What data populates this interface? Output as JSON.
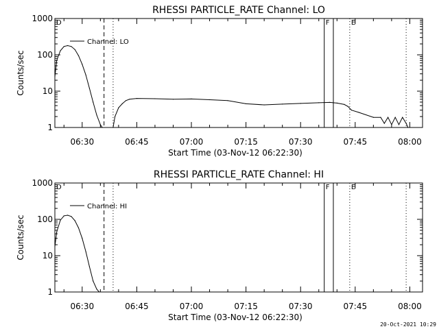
{
  "footer_date": "20-Oct-2021 10:29",
  "chart_data": [
    {
      "type": "line",
      "title": "RHESSI PARTICLE_RATE Channel: LO",
      "xlabel": "Start Time (03-Nov-12 06:22:30)",
      "ylabel": "Counts/sec",
      "yscale": "log",
      "ylim": [
        1,
        1000
      ],
      "xlim": [
        "06:22:30",
        "08:03:30"
      ],
      "x_ticks": [
        "06:30",
        "06:45",
        "07:00",
        "07:15",
        "07:30",
        "07:45",
        "08:00"
      ],
      "y_ticks": [
        "1",
        "10",
        "100",
        "1000"
      ],
      "legend": "Channel: LO",
      "legend_position": "top-left",
      "markers": [
        {
          "label": "D",
          "time": "06:22:30",
          "style": "none"
        },
        {
          "label": "",
          "time": "06:36:00",
          "style": "dashed"
        },
        {
          "label": "",
          "time": "06:38:30",
          "style": "dotted"
        },
        {
          "label": "F",
          "time": "07:36:30",
          "style": "solid"
        },
        {
          "label": "",
          "time": "07:39:00",
          "style": "solid"
        },
        {
          "label": "E",
          "time": "07:43:30",
          "style": "dotted"
        },
        {
          "label": "",
          "time": "07:59:00",
          "style": "dotted"
        }
      ],
      "series": [
        {
          "segments": [
            {
              "x": [
                "06:22:30",
                "06:23:00",
                "06:24:00",
                "06:25:00",
                "06:26:00",
                "06:27:00",
                "06:28:00",
                "06:29:00",
                "06:30:00",
                "06:31:00",
                "06:32:00",
                "06:33:00",
                "06:34:00",
                "06:35:00",
                "06:35:30"
              ],
              "y": [
                25,
                70,
                130,
                170,
                180,
                170,
                140,
                95,
                55,
                28,
                12,
                5,
                2.2,
                1.2,
                1.0
              ]
            },
            {
              "x": [
                "06:38:30",
                "06:39:00",
                "06:40:00",
                "06:41:00",
                "06:42:00",
                "06:43:00",
                "06:45:00",
                "06:50:00",
                "06:55:00",
                "07:00:00",
                "07:05:00",
                "07:10:00",
                "07:15:00",
                "07:20:00",
                "07:25:00",
                "07:30:00",
                "07:35:00",
                "07:38:00",
                "07:40:00",
                "07:42:00",
                "07:43:00",
                "07:44:00",
                "07:46:00",
                "07:50:00",
                "07:52:00",
                "07:53:00",
                "07:54:00",
                "07:55:00",
                "07:56:00",
                "07:57:00",
                "07:58:00",
                "07:59:00",
                "07:59:30"
              ],
              "y": [
                1.0,
                2.0,
                3.5,
                4.5,
                5.5,
                6.0,
                6.3,
                6.2,
                6.0,
                6.1,
                5.8,
                5.5,
                4.5,
                4.2,
                4.4,
                4.6,
                4.8,
                4.9,
                4.7,
                4.3,
                3.8,
                3.0,
                2.6,
                1.9,
                1.9,
                1.3,
                1.9,
                1.2,
                1.9,
                1.2,
                1.9,
                1.3,
                1.0
              ]
            }
          ]
        }
      ]
    },
    {
      "type": "line",
      "title": "RHESSI PARTICLE_RATE Channel: HI",
      "xlabel": "Start Time (03-Nov-12 06:22:30)",
      "ylabel": "Counts/sec",
      "yscale": "log",
      "ylim": [
        1,
        1000
      ],
      "xlim": [
        "06:22:30",
        "08:03:30"
      ],
      "x_ticks": [
        "06:30",
        "06:45",
        "07:00",
        "07:15",
        "07:30",
        "07:45",
        "08:00"
      ],
      "y_ticks": [
        "1",
        "10",
        "100",
        "1000"
      ],
      "legend": "Channel: HI",
      "legend_position": "top-left",
      "markers": [
        {
          "label": "D",
          "time": "06:22:30",
          "style": "none"
        },
        {
          "label": "",
          "time": "06:36:00",
          "style": "dashed"
        },
        {
          "label": "",
          "time": "06:38:30",
          "style": "dotted"
        },
        {
          "label": "F",
          "time": "07:36:30",
          "style": "solid"
        },
        {
          "label": "",
          "time": "07:39:00",
          "style": "solid"
        },
        {
          "label": "E",
          "time": "07:43:30",
          "style": "dotted"
        },
        {
          "label": "",
          "time": "07:59:00",
          "style": "dotted"
        }
      ],
      "series": [
        {
          "segments": [
            {
              "x": [
                "06:22:30",
                "06:23:00",
                "06:24:00",
                "06:25:00",
                "06:26:00",
                "06:27:00",
                "06:28:00",
                "06:29:00",
                "06:30:00",
                "06:31:00",
                "06:32:00",
                "06:33:00",
                "06:34:00",
                "06:34:40"
              ],
              "y": [
                18,
                45,
                95,
                125,
                130,
                120,
                92,
                58,
                30,
                13,
                5,
                2,
                1.2,
                1.0
              ]
            }
          ]
        }
      ]
    }
  ]
}
